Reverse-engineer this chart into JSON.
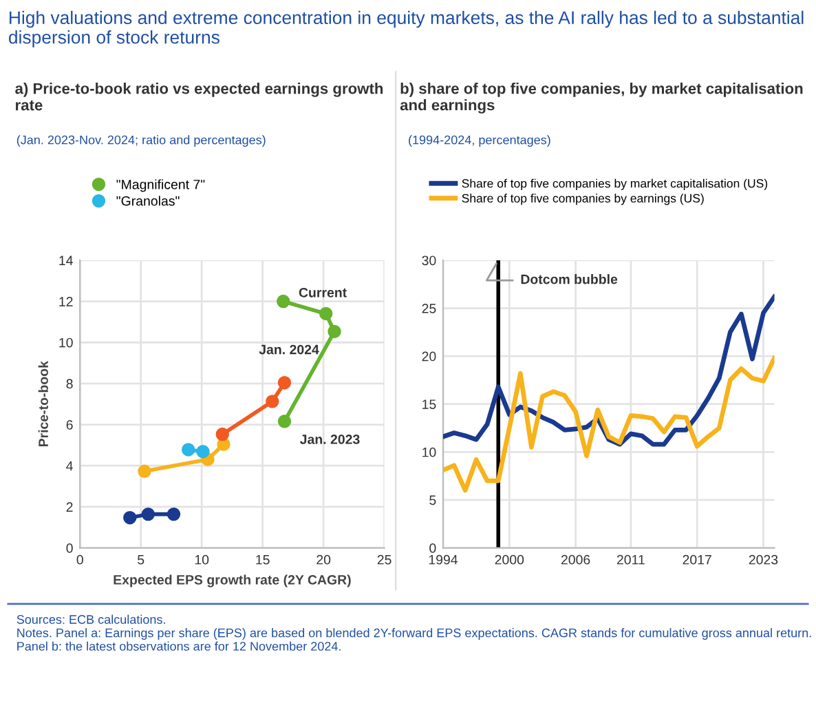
{
  "chart_data": [
    {
      "type": "line",
      "title": "a) Price-to-book ratio vs expected earnings growth rate",
      "subtitle": "(Jan. 2023-Nov. 2024; ratio and percentages)",
      "xlabel": "Expected EPS growth rate (2Y CAGR)",
      "ylabel": "Price-to-book",
      "series": [
        {
          "color": "#1a3a8f",
          "x": [
            4.1,
            5.6,
            7.7
          ],
          "values": [
            1.47,
            1.64,
            1.64
          ]
        },
        {
          "color": "#f7b21c",
          "x": [
            5.3,
            10.5,
            11.8
          ],
          "values": [
            3.73,
            4.31,
            5.04
          ]
        },
        {
          "color": "#f15a22",
          "x": [
            11.7,
            15.8,
            16.8
          ],
          "values": [
            5.53,
            7.13,
            8.04
          ]
        },
        {
          "name": "\"Magnificent 7\"",
          "color": "#66b32e",
          "x": [
            16.8,
            20.9,
            20.2,
            16.7
          ],
          "values": [
            6.16,
            10.53,
            11.4,
            12.0
          ]
        },
        {
          "name": "\"Granolas\"",
          "color": "#2bb6e8",
          "x": [
            8.9,
            10.1
          ],
          "values": [
            4.78,
            4.69
          ]
        }
      ],
      "marker": "circle",
      "line_style": "solid",
      "xlim": [
        0,
        25
      ],
      "xticks": [
        0,
        5,
        10,
        15,
        20,
        25
      ],
      "ylim": [
        0,
        14
      ],
      "yticks": [
        0,
        2,
        4,
        6,
        8,
        10,
        12,
        14
      ],
      "grid": true,
      "legend": "top left",
      "annotations": [
        "High valuations and extreme concentration in equity markets, as the AI rally has led to a substantial dispersion of stock returns",
        {
          "text": "Current",
          "x": 16.7,
          "y": 12.0
        },
        {
          "text": "Jan. 2024",
          "x": 20.9,
          "y": 10.53
        },
        {
          "text": "Jan. 2023",
          "x": 16.8,
          "y": 6.16
        }
      ]
    },
    {
      "type": "line",
      "title": "b) share of top five companies, by market capitalisation and earnings",
      "subtitle": "(1994-2024, percentages)",
      "x": [
        1994,
        1995,
        1996,
        1997,
        1998,
        1999,
        2000,
        2001,
        2002,
        2003,
        2004,
        2005,
        2006,
        2007,
        2008,
        2009,
        2010,
        2011,
        2012,
        2013,
        2014,
        2015,
        2016,
        2017,
        2018,
        2019,
        2020,
        2021,
        2022,
        2023,
        2024
      ],
      "series": [
        {
          "name": "Share of top five companies by market capitalisation (US)",
          "color": "#1a3a8f",
          "values": [
            11.6,
            12.0,
            11.7,
            11.3,
            12.9,
            16.8,
            13.9,
            14.7,
            14.3,
            13.6,
            13.1,
            12.3,
            12.4,
            12.6,
            13.5,
            11.3,
            10.8,
            11.9,
            11.7,
            10.8,
            10.8,
            12.3,
            12.3,
            13.8,
            15.6,
            17.7,
            22.5,
            24.4,
            19.7,
            24.5,
            26.2
          ]
        },
        {
          "name": "Share of top five companies by earnings (US)",
          "color": "#f7b21c",
          "values": [
            8.1,
            8.6,
            6.0,
            9.2,
            7.0,
            7.0,
            12.5,
            18.2,
            10.5,
            15.8,
            16.3,
            15.9,
            14.2,
            9.6,
            14.4,
            11.6,
            11.0,
            13.8,
            13.7,
            13.5,
            12.1,
            13.7,
            13.6,
            10.6,
            11.6,
            12.5,
            17.5,
            18.7,
            17.7,
            17.4,
            19.8
          ]
        }
      ],
      "marker": "none",
      "line_style": "solid",
      "xlim": [
        1994,
        2024
      ],
      "xticks": [
        1994,
        2000,
        2006,
        2011,
        2017,
        2023
      ],
      "ylim": [
        0,
        30
      ],
      "yticks": [
        0,
        5,
        10,
        15,
        20,
        25,
        30
      ],
      "grid": true,
      "legend": "top",
      "ref_lines": [
        {
          "axis": "x",
          "value": 1999,
          "label": "Dotcom bubble",
          "color": "#000000",
          "line_style": "solid"
        }
      ],
      "annotations": [
        "Sources: ECB calculations.",
        "Notes. Panel a: Earnings per share (EPS) are based on blended 2Y-forward EPS expectations. CAGR stands for cumulative gross annual return. Panel b: the latest observations are for 12 November 2024."
      ]
    }
  ]
}
